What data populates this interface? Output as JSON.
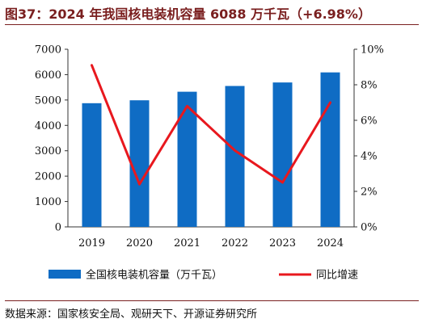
{
  "figure": {
    "title": "图37：2024 年我国核电装机容量 6088 万千瓦（+6.98%）",
    "source": "数据来源：国家核安全局、观研天下、开源证券研究所"
  },
  "chart_data": {
    "type": "bar",
    "categories": [
      "2019",
      "2020",
      "2021",
      "2022",
      "2023",
      "2024"
    ],
    "series": [
      {
        "name": "全国核电装机容量（万千瓦）",
        "kind": "bar",
        "axis": "left",
        "color": "#0f6cc4",
        "values": [
          4874,
          4989,
          5326,
          5553,
          5691,
          6088
        ]
      },
      {
        "name": "同比增速",
        "kind": "line",
        "axis": "right",
        "color": "#e8181e",
        "values": [
          9.1,
          2.4,
          6.8,
          4.3,
          2.5,
          7.0
        ]
      }
    ],
    "ylim_left": [
      0,
      7000
    ],
    "yticks_left": [
      0,
      1000,
      2000,
      3000,
      4000,
      5000,
      6000,
      7000
    ],
    "ylim_right": [
      0,
      10
    ],
    "yticks_right": [
      "0%",
      "2%",
      "4%",
      "6%",
      "8%",
      "10%"
    ],
    "grid": false,
    "legend": "bottom"
  }
}
